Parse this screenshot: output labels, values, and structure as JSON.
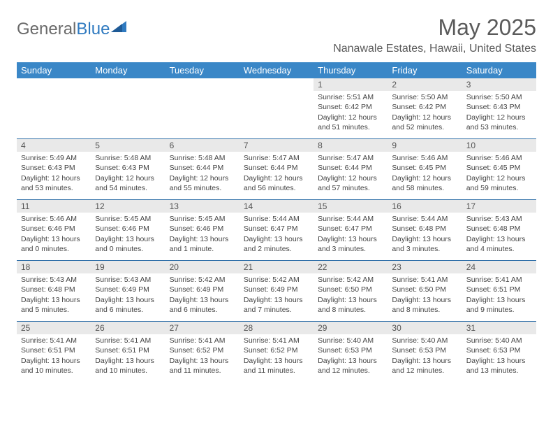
{
  "logo": {
    "part1": "General",
    "part2": "Blue"
  },
  "title": "May 2025",
  "location": "Nanawale Estates, Hawaii, United States",
  "colors": {
    "header_bg": "#3a87c7",
    "daynum_bg": "#e9e9e9",
    "rule": "#2f6fa8",
    "text": "#444444",
    "title_text": "#5a5a5a",
    "logo_blue": "#2f7ac0"
  },
  "day_labels": [
    "Sunday",
    "Monday",
    "Tuesday",
    "Wednesday",
    "Thursday",
    "Friday",
    "Saturday"
  ],
  "weeks": [
    [
      {
        "n": "",
        "sr": "",
        "ss": "",
        "dl1": "",
        "dl2": ""
      },
      {
        "n": "",
        "sr": "",
        "ss": "",
        "dl1": "",
        "dl2": ""
      },
      {
        "n": "",
        "sr": "",
        "ss": "",
        "dl1": "",
        "dl2": ""
      },
      {
        "n": "",
        "sr": "",
        "ss": "",
        "dl1": "",
        "dl2": ""
      },
      {
        "n": "1",
        "sr": "Sunrise: 5:51 AM",
        "ss": "Sunset: 6:42 PM",
        "dl1": "Daylight: 12 hours",
        "dl2": "and 51 minutes."
      },
      {
        "n": "2",
        "sr": "Sunrise: 5:50 AM",
        "ss": "Sunset: 6:42 PM",
        "dl1": "Daylight: 12 hours",
        "dl2": "and 52 minutes."
      },
      {
        "n": "3",
        "sr": "Sunrise: 5:50 AM",
        "ss": "Sunset: 6:43 PM",
        "dl1": "Daylight: 12 hours",
        "dl2": "and 53 minutes."
      }
    ],
    [
      {
        "n": "4",
        "sr": "Sunrise: 5:49 AM",
        "ss": "Sunset: 6:43 PM",
        "dl1": "Daylight: 12 hours",
        "dl2": "and 53 minutes."
      },
      {
        "n": "5",
        "sr": "Sunrise: 5:48 AM",
        "ss": "Sunset: 6:43 PM",
        "dl1": "Daylight: 12 hours",
        "dl2": "and 54 minutes."
      },
      {
        "n": "6",
        "sr": "Sunrise: 5:48 AM",
        "ss": "Sunset: 6:44 PM",
        "dl1": "Daylight: 12 hours",
        "dl2": "and 55 minutes."
      },
      {
        "n": "7",
        "sr": "Sunrise: 5:47 AM",
        "ss": "Sunset: 6:44 PM",
        "dl1": "Daylight: 12 hours",
        "dl2": "and 56 minutes."
      },
      {
        "n": "8",
        "sr": "Sunrise: 5:47 AM",
        "ss": "Sunset: 6:44 PM",
        "dl1": "Daylight: 12 hours",
        "dl2": "and 57 minutes."
      },
      {
        "n": "9",
        "sr": "Sunrise: 5:46 AM",
        "ss": "Sunset: 6:45 PM",
        "dl1": "Daylight: 12 hours",
        "dl2": "and 58 minutes."
      },
      {
        "n": "10",
        "sr": "Sunrise: 5:46 AM",
        "ss": "Sunset: 6:45 PM",
        "dl1": "Daylight: 12 hours",
        "dl2": "and 59 minutes."
      }
    ],
    [
      {
        "n": "11",
        "sr": "Sunrise: 5:46 AM",
        "ss": "Sunset: 6:46 PM",
        "dl1": "Daylight: 13 hours",
        "dl2": "and 0 minutes."
      },
      {
        "n": "12",
        "sr": "Sunrise: 5:45 AM",
        "ss": "Sunset: 6:46 PM",
        "dl1": "Daylight: 13 hours",
        "dl2": "and 0 minutes."
      },
      {
        "n": "13",
        "sr": "Sunrise: 5:45 AM",
        "ss": "Sunset: 6:46 PM",
        "dl1": "Daylight: 13 hours",
        "dl2": "and 1 minute."
      },
      {
        "n": "14",
        "sr": "Sunrise: 5:44 AM",
        "ss": "Sunset: 6:47 PM",
        "dl1": "Daylight: 13 hours",
        "dl2": "and 2 minutes."
      },
      {
        "n": "15",
        "sr": "Sunrise: 5:44 AM",
        "ss": "Sunset: 6:47 PM",
        "dl1": "Daylight: 13 hours",
        "dl2": "and 3 minutes."
      },
      {
        "n": "16",
        "sr": "Sunrise: 5:44 AM",
        "ss": "Sunset: 6:48 PM",
        "dl1": "Daylight: 13 hours",
        "dl2": "and 3 minutes."
      },
      {
        "n": "17",
        "sr": "Sunrise: 5:43 AM",
        "ss": "Sunset: 6:48 PM",
        "dl1": "Daylight: 13 hours",
        "dl2": "and 4 minutes."
      }
    ],
    [
      {
        "n": "18",
        "sr": "Sunrise: 5:43 AM",
        "ss": "Sunset: 6:48 PM",
        "dl1": "Daylight: 13 hours",
        "dl2": "and 5 minutes."
      },
      {
        "n": "19",
        "sr": "Sunrise: 5:43 AM",
        "ss": "Sunset: 6:49 PM",
        "dl1": "Daylight: 13 hours",
        "dl2": "and 6 minutes."
      },
      {
        "n": "20",
        "sr": "Sunrise: 5:42 AM",
        "ss": "Sunset: 6:49 PM",
        "dl1": "Daylight: 13 hours",
        "dl2": "and 6 minutes."
      },
      {
        "n": "21",
        "sr": "Sunrise: 5:42 AM",
        "ss": "Sunset: 6:49 PM",
        "dl1": "Daylight: 13 hours",
        "dl2": "and 7 minutes."
      },
      {
        "n": "22",
        "sr": "Sunrise: 5:42 AM",
        "ss": "Sunset: 6:50 PM",
        "dl1": "Daylight: 13 hours",
        "dl2": "and 8 minutes."
      },
      {
        "n": "23",
        "sr": "Sunrise: 5:41 AM",
        "ss": "Sunset: 6:50 PM",
        "dl1": "Daylight: 13 hours",
        "dl2": "and 8 minutes."
      },
      {
        "n": "24",
        "sr": "Sunrise: 5:41 AM",
        "ss": "Sunset: 6:51 PM",
        "dl1": "Daylight: 13 hours",
        "dl2": "and 9 minutes."
      }
    ],
    [
      {
        "n": "25",
        "sr": "Sunrise: 5:41 AM",
        "ss": "Sunset: 6:51 PM",
        "dl1": "Daylight: 13 hours",
        "dl2": "and 10 minutes."
      },
      {
        "n": "26",
        "sr": "Sunrise: 5:41 AM",
        "ss": "Sunset: 6:51 PM",
        "dl1": "Daylight: 13 hours",
        "dl2": "and 10 minutes."
      },
      {
        "n": "27",
        "sr": "Sunrise: 5:41 AM",
        "ss": "Sunset: 6:52 PM",
        "dl1": "Daylight: 13 hours",
        "dl2": "and 11 minutes."
      },
      {
        "n": "28",
        "sr": "Sunrise: 5:41 AM",
        "ss": "Sunset: 6:52 PM",
        "dl1": "Daylight: 13 hours",
        "dl2": "and 11 minutes."
      },
      {
        "n": "29",
        "sr": "Sunrise: 5:40 AM",
        "ss": "Sunset: 6:53 PM",
        "dl1": "Daylight: 13 hours",
        "dl2": "and 12 minutes."
      },
      {
        "n": "30",
        "sr": "Sunrise: 5:40 AM",
        "ss": "Sunset: 6:53 PM",
        "dl1": "Daylight: 13 hours",
        "dl2": "and 12 minutes."
      },
      {
        "n": "31",
        "sr": "Sunrise: 5:40 AM",
        "ss": "Sunset: 6:53 PM",
        "dl1": "Daylight: 13 hours",
        "dl2": "and 13 minutes."
      }
    ]
  ]
}
